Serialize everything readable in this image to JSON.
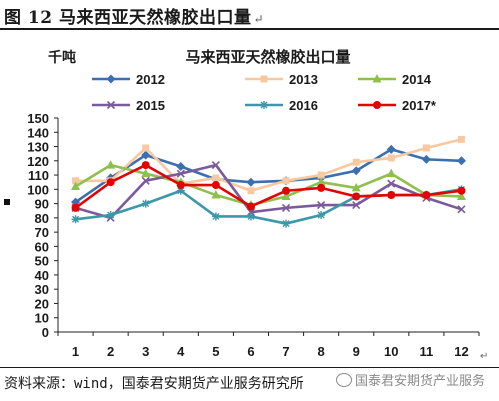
{
  "figure_title": "图 12 马来西亚天然橡胶出口量",
  "footer": {
    "source": "资料来源：wind，国泰君安期货产业服务研究所",
    "watermark": "国泰君安期货产业服务"
  },
  "chart_data": {
    "type": "line",
    "title": "马来西亚天然橡胶出口量",
    "unit_label": "千吨",
    "x": [
      1,
      2,
      3,
      4,
      5,
      6,
      7,
      8,
      9,
      10,
      11,
      12
    ],
    "ylim": [
      0,
      150
    ],
    "yticks": [
      0,
      10,
      20,
      30,
      40,
      50,
      60,
      70,
      80,
      90,
      100,
      110,
      120,
      130,
      140,
      150
    ],
    "grid": false,
    "legend_position": "top",
    "series": [
      {
        "name": "2012",
        "color": "#3b6fb0",
        "marker": "diamond",
        "values": [
          91,
          108,
          124,
          116,
          107,
          105,
          106,
          108,
          113,
          128,
          121,
          120
        ]
      },
      {
        "name": "2013",
        "color": "#f8c9a0",
        "marker": "square",
        "values": [
          106,
          106,
          129,
          104,
          108,
          99,
          106,
          110,
          119,
          122,
          129,
          135
        ]
      },
      {
        "name": "2014",
        "color": "#8fbf4f",
        "marker": "triangle",
        "values": [
          102,
          117,
          111,
          105,
          96,
          89,
          95,
          105,
          101,
          111,
          96,
          95
        ]
      },
      {
        "name": "2015",
        "color": "#7a5a9c",
        "marker": "x",
        "values": [
          87,
          80,
          106,
          111,
          117,
          84,
          87,
          89,
          89,
          104,
          94,
          86
        ]
      },
      {
        "name": "2016",
        "color": "#3a98a8",
        "marker": "star",
        "values": [
          79,
          82,
          90,
          99,
          81,
          81,
          76,
          82,
          95,
          96,
          96,
          100
        ]
      },
      {
        "name": "2017*",
        "color": "#e60000",
        "marker": "circle",
        "values": [
          87,
          105,
          117,
          103,
          103,
          88,
          99,
          101,
          95,
          96,
          96,
          99
        ]
      }
    ]
  }
}
